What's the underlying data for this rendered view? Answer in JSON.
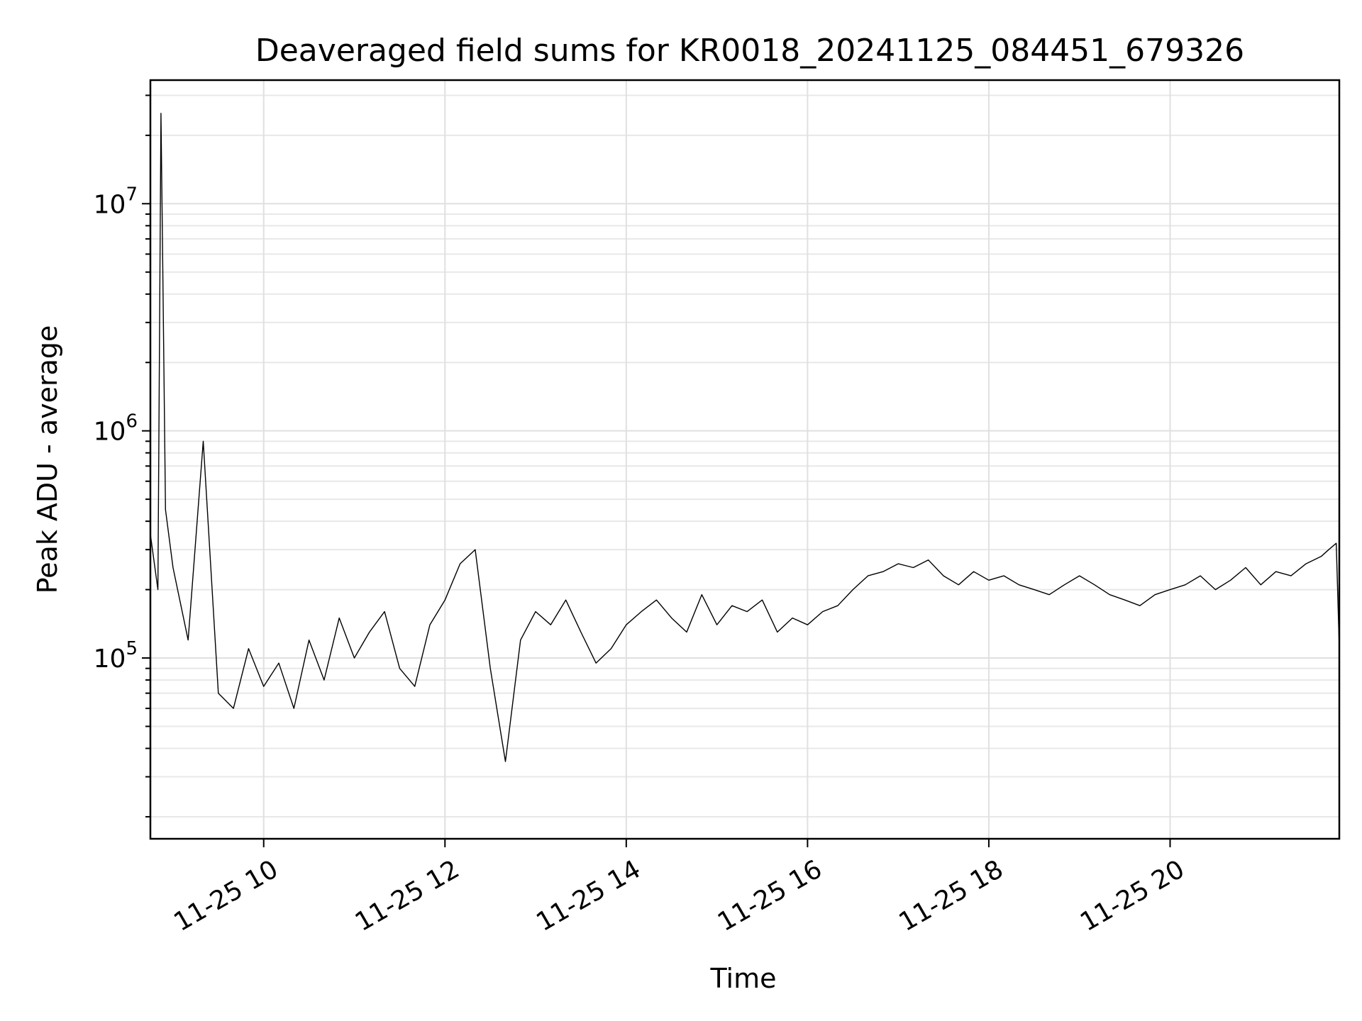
{
  "chart_data": {
    "type": "line",
    "title": "Deaveraged field sums for KR0018_20241125_084451_679326",
    "xlabel": "Time",
    "ylabel": "Peak ADU - average",
    "xscale": "time",
    "yscale": "log",
    "xlim": [
      "2024-11-25 08:45",
      "2024-11-25 21:52"
    ],
    "ylim": [
      16000,
      35000000
    ],
    "grid": true,
    "legend": "none",
    "x_ticks": [
      {
        "value": "2024-11-25 10:00",
        "label": "11-25 10"
      },
      {
        "value": "2024-11-25 12:00",
        "label": "11-25 12"
      },
      {
        "value": "2024-11-25 14:00",
        "label": "11-25 14"
      },
      {
        "value": "2024-11-25 16:00",
        "label": "11-25 16"
      },
      {
        "value": "2024-11-25 18:00",
        "label": "11-25 18"
      },
      {
        "value": "2024-11-25 20:00",
        "label": "11-25 20"
      }
    ],
    "y_ticks": [
      {
        "value": 100000,
        "base": "10",
        "exp": "5"
      },
      {
        "value": 1000000,
        "base": "10",
        "exp": "6"
      },
      {
        "value": 10000000,
        "base": "10",
        "exp": "7"
      }
    ],
    "series": [
      {
        "color": "#000000",
        "x": [
          "2024-11-25 08:45",
          "2024-11-25 08:50",
          "2024-11-25 08:52",
          "2024-11-25 08:53",
          "2024-11-25 08:55",
          "2024-11-25 09:00",
          "2024-11-25 09:10",
          "2024-11-25 09:20",
          "2024-11-25 09:30",
          "2024-11-25 09:40",
          "2024-11-25 09:50",
          "2024-11-25 10:00",
          "2024-11-25 10:10",
          "2024-11-25 10:20",
          "2024-11-25 10:30",
          "2024-11-25 10:40",
          "2024-11-25 10:50",
          "2024-11-25 11:00",
          "2024-11-25 11:10",
          "2024-11-25 11:20",
          "2024-11-25 11:30",
          "2024-11-25 11:40",
          "2024-11-25 11:50",
          "2024-11-25 12:00",
          "2024-11-25 12:10",
          "2024-11-25 12:20",
          "2024-11-25 12:30",
          "2024-11-25 12:40",
          "2024-11-25 12:50",
          "2024-11-25 13:00",
          "2024-11-25 13:10",
          "2024-11-25 13:20",
          "2024-11-25 13:30",
          "2024-11-25 13:40",
          "2024-11-25 13:50",
          "2024-11-25 14:00",
          "2024-11-25 14:10",
          "2024-11-25 14:20",
          "2024-11-25 14:30",
          "2024-11-25 14:40",
          "2024-11-25 14:50",
          "2024-11-25 15:00",
          "2024-11-25 15:10",
          "2024-11-25 15:20",
          "2024-11-25 15:30",
          "2024-11-25 15:40",
          "2024-11-25 15:50",
          "2024-11-25 16:00",
          "2024-11-25 16:10",
          "2024-11-25 16:20",
          "2024-11-25 16:30",
          "2024-11-25 16:40",
          "2024-11-25 16:50",
          "2024-11-25 17:00",
          "2024-11-25 17:10",
          "2024-11-25 17:20",
          "2024-11-25 17:30",
          "2024-11-25 17:40",
          "2024-11-25 17:50",
          "2024-11-25 18:00",
          "2024-11-25 18:10",
          "2024-11-25 18:20",
          "2024-11-25 18:30",
          "2024-11-25 18:40",
          "2024-11-25 18:50",
          "2024-11-25 19:00",
          "2024-11-25 19:10",
          "2024-11-25 19:20",
          "2024-11-25 19:30",
          "2024-11-25 19:40",
          "2024-11-25 19:50",
          "2024-11-25 20:00",
          "2024-11-25 20:10",
          "2024-11-25 20:20",
          "2024-11-25 20:30",
          "2024-11-25 20:40",
          "2024-11-25 20:50",
          "2024-11-25 21:00",
          "2024-11-25 21:10",
          "2024-11-25 21:20",
          "2024-11-25 21:30",
          "2024-11-25 21:40",
          "2024-11-25 21:45",
          "2024-11-25 21:50",
          "2024-11-25 21:52"
        ],
        "y": [
          350000,
          200000,
          25000000,
          7000000,
          450000,
          250000,
          120000,
          900000,
          70000,
          60000,
          110000,
          75000,
          95000,
          60000,
          120000,
          80000,
          150000,
          100000,
          130000,
          160000,
          90000,
          75000,
          140000,
          180000,
          260000,
          300000,
          90000,
          35000,
          120000,
          160000,
          140000,
          180000,
          130000,
          95000,
          110000,
          140000,
          160000,
          180000,
          150000,
          130000,
          190000,
          140000,
          170000,
          160000,
          180000,
          130000,
          150000,
          140000,
          160000,
          170000,
          200000,
          230000,
          240000,
          260000,
          250000,
          270000,
          230000,
          210000,
          240000,
          220000,
          230000,
          210000,
          200000,
          190000,
          210000,
          230000,
          210000,
          190000,
          180000,
          170000,
          190000,
          200000,
          210000,
          230000,
          200000,
          220000,
          250000,
          210000,
          240000,
          230000,
          260000,
          280000,
          300000,
          320000,
          110000
        ]
      }
    ]
  }
}
